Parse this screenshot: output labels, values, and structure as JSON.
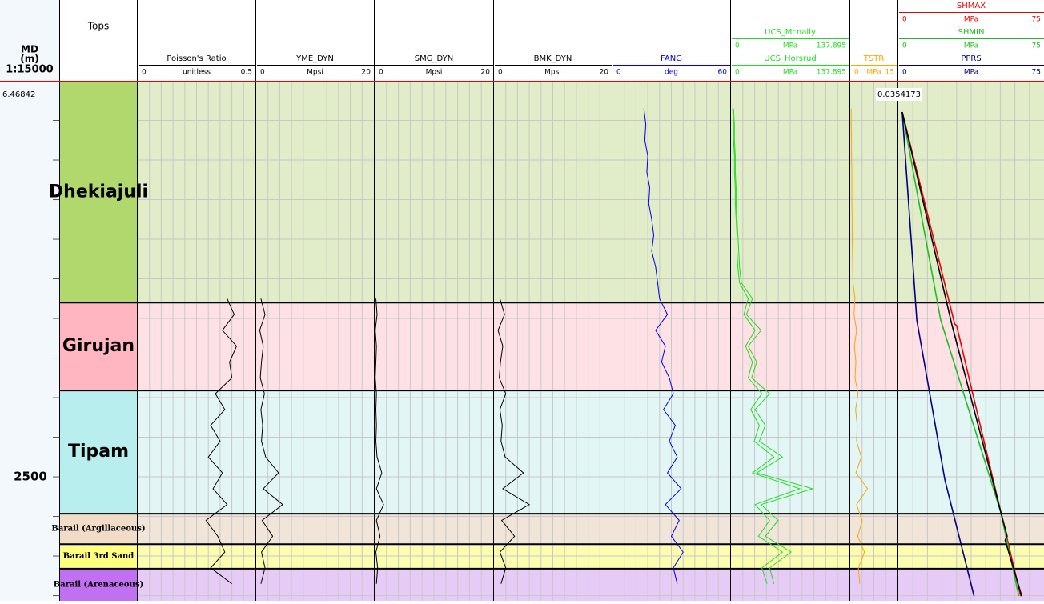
{
  "depth_track": {
    "title": "MD",
    "unit": "(m)",
    "scale": "1:15000",
    "top_label": "6.46842",
    "ylim": [
      1504,
      2813
    ],
    "yticks": [
      2500
    ],
    "minor_ticks": [
      1600,
      1700,
      1800,
      1900,
      2000,
      2100,
      2200,
      2300,
      2400,
      2500,
      2600,
      2700,
      2800
    ]
  },
  "tops": {
    "title": "Tops",
    "zones": [
      {
        "name": "Dhekiajuli",
        "top": 1504,
        "base": 2060,
        "color": "#b0d86c",
        "fill": "#e1ecc9"
      },
      {
        "name": "Girujan",
        "top": 2060,
        "base": 2282,
        "color": "#ffb6c1",
        "fill": "#fde1e5"
      },
      {
        "name": "Tipam",
        "top": 2282,
        "base": 2593,
        "color": "#b9eeee",
        "fill": "#e2f6f6"
      },
      {
        "name": "Barail (Argillaceous)",
        "top": 2593,
        "base": 2670,
        "color": "#f1dcc8",
        "fill": "#f1e4d8"
      },
      {
        "name": "Barail 3rd Sand",
        "top": 2670,
        "base": 2732,
        "color": "#ffff80",
        "fill": "#fdfdb0"
      },
      {
        "name": "Barail (Arenaceous)",
        "top": 2732,
        "base": 2813,
        "color": "#c070f0",
        "fill": "#e6cbf6"
      }
    ]
  },
  "tracks": [
    {
      "curves": [
        {
          "name": "Poisson's Ratio",
          "color": "#000000",
          "min": 0,
          "unit": "unitless",
          "max": 0.5,
          "depths": [
            2050,
            2090,
            2130,
            2170,
            2210,
            2250,
            2290,
            2330,
            2370,
            2410,
            2450,
            2490,
            2530,
            2570,
            2610,
            2650,
            2690,
            2730,
            2770
          ],
          "values": [
            0.38,
            0.41,
            0.36,
            0.42,
            0.39,
            0.4,
            0.33,
            0.37,
            0.31,
            0.35,
            0.3,
            0.36,
            0.32,
            0.38,
            0.29,
            0.34,
            0.37,
            0.31,
            0.4
          ]
        }
      ]
    },
    {
      "curves": [
        {
          "name": "YME_DYN",
          "color": "#000000",
          "min": 0,
          "unit": "Mpsi",
          "max": 20,
          "depths": [
            2050,
            2090,
            2130,
            2170,
            2210,
            2250,
            2290,
            2330,
            2370,
            2410,
            2450,
            2490,
            2530,
            2570,
            2610,
            2650,
            2690,
            2730,
            2770
          ],
          "values": [
            0.8,
            1.5,
            0.6,
            1.2,
            0.9,
            0.7,
            1.4,
            0.8,
            1.1,
            0.9,
            1.6,
            3.8,
            1.2,
            4.5,
            1.0,
            2.8,
            0.9,
            1.5,
            0.8
          ]
        }
      ]
    },
    {
      "curves": [
        {
          "name": "SMG_DYN",
          "color": "#000000",
          "min": 0,
          "unit": "Mpsi",
          "max": 20,
          "depths": [
            2050,
            2090,
            2130,
            2170,
            2210,
            2250,
            2290,
            2330,
            2370,
            2410,
            2450,
            2490,
            2530,
            2570,
            2610,
            2650,
            2690,
            2730,
            2770
          ],
          "values": [
            0.2,
            0.4,
            0.1,
            0.3,
            0.2,
            0.1,
            0.3,
            0.2,
            0.3,
            0.2,
            0.4,
            1.2,
            0.3,
            1.5,
            0.3,
            0.9,
            0.2,
            0.5,
            0.3
          ]
        }
      ]
    },
    {
      "curves": [
        {
          "name": "BMK_DYN",
          "color": "#000000",
          "min": 0,
          "unit": "Mpsi",
          "max": 20,
          "depths": [
            2050,
            2090,
            2130,
            2170,
            2210,
            2250,
            2290,
            2330,
            2370,
            2410,
            2450,
            2490,
            2530,
            2570,
            2610,
            2650,
            2690,
            2730,
            2770
          ],
          "values": [
            1.0,
            1.8,
            0.7,
            1.5,
            1.1,
            0.9,
            2.0,
            1.0,
            1.4,
            1.2,
            1.9,
            5.0,
            1.5,
            6.0,
            1.3,
            3.5,
            1.0,
            2.0,
            1.2
          ]
        }
      ]
    },
    {
      "curves": [
        {
          "name": "FANG",
          "color": "#0000ee",
          "min": 0,
          "unit": "deg",
          "max": 60,
          "depths": [
            1570,
            1610,
            1650,
            1690,
            1730,
            1770,
            1810,
            1850,
            1890,
            1930,
            1970,
            2010,
            2050,
            2090,
            2130,
            2170,
            2210,
            2250,
            2290,
            2330,
            2370,
            2410,
            2450,
            2490,
            2530,
            2570,
            2610,
            2650,
            2690,
            2730,
            2770
          ],
          "values": [
            16,
            17,
            16.5,
            18,
            17.5,
            19,
            18.5,
            20,
            21,
            20,
            22,
            23,
            24,
            28,
            22,
            27,
            25,
            29,
            31,
            26,
            32,
            29,
            33,
            28,
            35,
            27,
            34,
            30,
            36,
            31,
            33
          ]
        }
      ]
    },
    {
      "curves": [
        {
          "name": "UCS_Mcnally",
          "color": "#22dd22",
          "min": 0,
          "unit": "MPa",
          "max": 137.895,
          "depths": [
            1570,
            1610,
            1650,
            1690,
            1730,
            1770,
            1810,
            1850,
            1890,
            1930,
            1970,
            2010,
            2050,
            2090,
            2130,
            2170,
            2210,
            2250,
            2290,
            2330,
            2370,
            2410,
            2450,
            2490,
            2530,
            2570,
            2610,
            2650,
            2690,
            2730,
            2770
          ],
          "values": [
            3,
            4,
            4,
            5,
            5,
            6,
            6,
            7,
            8,
            9,
            10,
            12,
            25,
            18,
            35,
            20,
            30,
            24,
            45,
            28,
            40,
            33,
            60,
            30,
            95,
            35,
            55,
            40,
            70,
            45,
            50
          ]
        },
        {
          "name": "UCS_Horsrud",
          "color": "#22dd22",
          "min": 0,
          "unit": "MPa",
          "max": 137.895,
          "depths": [
            1570,
            1610,
            1650,
            1690,
            1730,
            1770,
            1810,
            1850,
            1890,
            1930,
            1970,
            2010,
            2050,
            2090,
            2130,
            2170,
            2210,
            2250,
            2290,
            2330,
            2370,
            2410,
            2450,
            2490,
            2530,
            2570,
            2610,
            2650,
            2690,
            2730,
            2770
          ],
          "values": [
            2,
            3,
            3,
            4,
            4,
            5,
            5,
            6,
            7,
            7,
            8,
            10,
            20,
            15,
            28,
            17,
            25,
            20,
            36,
            23,
            33,
            27,
            50,
            25,
            80,
            28,
            45,
            32,
            60,
            36,
            42
          ]
        }
      ]
    },
    {
      "curves": [
        {
          "name": "TSTR",
          "color": "#ffa500",
          "min": 0,
          "unit": "MPa",
          "max": 15,
          "depths": [
            1570,
            1610,
            1650,
            1690,
            1730,
            1770,
            1810,
            1850,
            1890,
            1930,
            1970,
            2010,
            2050,
            2090,
            2130,
            2170,
            2210,
            2250,
            2290,
            2330,
            2370,
            2410,
            2450,
            2490,
            2530,
            2570,
            2610,
            2650,
            2690,
            2730,
            2770
          ],
          "values": [
            0.3,
            0.3,
            0.4,
            0.4,
            0.5,
            0.5,
            0.5,
            0.6,
            0.6,
            0.7,
            0.8,
            0.9,
            1.5,
            1.2,
            2.0,
            1.3,
            1.8,
            1.5,
            2.5,
            1.7,
            2.2,
            2.0,
            3.5,
            1.8,
            5.5,
            2.0,
            3.8,
            2.4,
            4.5,
            2.6,
            3.0
          ]
        }
      ]
    },
    {
      "top_label": "0.0354173",
      "curves": [
        {
          "name": "SHMAX",
          "color": "#ee0000",
          "min": 0,
          "unit": "MPa",
          "max": 75,
          "depths": [
            1579,
            2114,
            2118,
            2801
          ],
          "values": [
            2,
            29,
            30,
            63
          ]
        },
        {
          "name": "SHMIN",
          "color": "#22bb22",
          "min": 0,
          "unit": "MPa",
          "max": 75,
          "depths": [
            1579,
            2104,
            2589,
            2801
          ],
          "values": [
            2,
            21.8,
            52.7,
            62
          ]
        },
        {
          "name": "PPRS",
          "color": "#000080",
          "min": 0,
          "unit": "MPa",
          "max": 75,
          "depths": [
            1579,
            2104,
            2508,
            2801
          ],
          "values": [
            2,
            9.5,
            24,
            39
          ]
        },
        {
          "color": "#000000",
          "depths": [
            1579,
            2114,
            2650,
            2660,
            2801
          ],
          "values": [
            2,
            27.5,
            56,
            55,
            63.5
          ]
        }
      ]
    }
  ]
}
